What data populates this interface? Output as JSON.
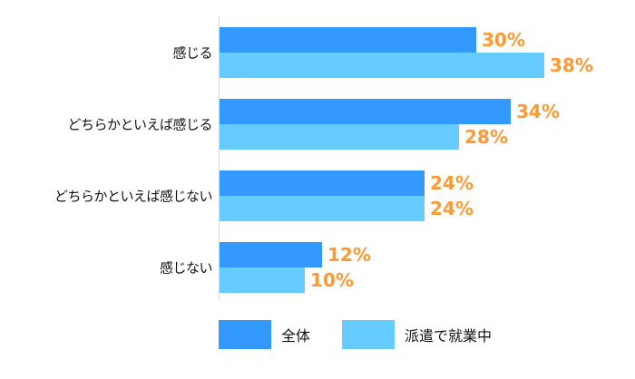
{
  "chart_data": {
    "type": "bar",
    "orientation": "horizontal",
    "title": "",
    "xlabel": "",
    "ylabel": "",
    "categories": [
      "感じる",
      "どちらかといえば感じる",
      "どちらかといえば感じない",
      "感じない"
    ],
    "series": [
      {
        "name": "全体",
        "color": "#3399ff",
        "values": [
          30,
          34,
          24,
          12
        ],
        "labels": [
          "30%",
          "34%",
          "24%",
          "12%"
        ]
      },
      {
        "name": "派遣で就業中",
        "color": "#66ccff",
        "values": [
          38,
          28,
          24,
          10
        ],
        "labels": [
          "38%",
          "28%",
          "24%",
          "10%"
        ]
      }
    ],
    "value_label_color": "#ff9933",
    "unit": "%",
    "grid": false,
    "legend_position": "bottom"
  },
  "legend": [
    {
      "label": "全体",
      "color": "#3399ff"
    },
    {
      "label": "派遣で就業中",
      "color": "#66ccff"
    }
  ]
}
